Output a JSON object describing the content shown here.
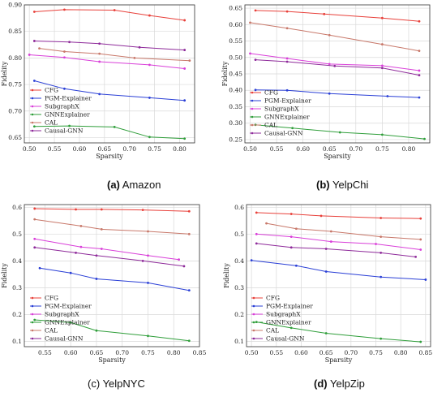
{
  "colors": {
    "CFG": "#e8403a",
    "PGM-Explainer": "#2a3fd6",
    "SubgraphX": "#d93fd9",
    "GNNExplainer": "#2f9e3a",
    "CAL": "#c8786a",
    "Causal-GNN": "#8e2a9a"
  },
  "captions": [
    {
      "letter": "(a)",
      "name": "Amazon"
    },
    {
      "letter": "(b)",
      "name": "YelpChi"
    },
    {
      "letter": "(c)",
      "name": "YelpNYC"
    },
    {
      "letter": "(d)",
      "name": "YelpZip"
    }
  ],
  "chart_data": [
    {
      "type": "line",
      "xlabel": "Sparsity",
      "ylabel": "Fidelity",
      "xlim": [
        0.49,
        0.83
      ],
      "ylim": [
        0.64,
        0.9
      ],
      "xticks": [
        0.5,
        0.55,
        0.6,
        0.65,
        0.7,
        0.75,
        0.8
      ],
      "yticks": [
        0.65,
        0.7,
        0.75,
        0.8,
        0.85,
        0.9
      ],
      "xtick_labels": [
        "0.50",
        "0.55",
        "0.60",
        "0.65",
        "0.70",
        "0.75",
        "0.80"
      ],
      "ytick_labels": [
        "0.65",
        "0.70",
        "0.75",
        "0.80",
        "0.85",
        "0.90"
      ],
      "grid": true,
      "legend": "lower-left",
      "series": [
        {
          "name": "CFG",
          "x": [
            0.51,
            0.57,
            0.67,
            0.74,
            0.81
          ],
          "y": [
            0.887,
            0.891,
            0.89,
            0.88,
            0.871
          ]
        },
        {
          "name": "PGM-Explainer",
          "x": [
            0.51,
            0.57,
            0.64,
            0.74,
            0.81
          ],
          "y": [
            0.757,
            0.742,
            0.732,
            0.725,
            0.72
          ]
        },
        {
          "name": "SubgraphX",
          "x": [
            0.5,
            0.57,
            0.64,
            0.74,
            0.81
          ],
          "y": [
            0.806,
            0.801,
            0.793,
            0.787,
            0.78
          ]
        },
        {
          "name": "GNNExplainer",
          "x": [
            0.51,
            0.58,
            0.67,
            0.74,
            0.81
          ],
          "y": [
            0.671,
            0.672,
            0.67,
            0.651,
            0.648
          ]
        },
        {
          "name": "CAL",
          "x": [
            0.52,
            0.57,
            0.64,
            0.71,
            0.82
          ],
          "y": [
            0.818,
            0.812,
            0.808,
            0.8,
            0.795
          ]
        },
        {
          "name": "Causal-GNN",
          "x": [
            0.51,
            0.58,
            0.64,
            0.72,
            0.81
          ],
          "y": [
            0.832,
            0.83,
            0.827,
            0.82,
            0.815
          ]
        }
      ]
    },
    {
      "type": "line",
      "xlabel": "Sparsity",
      "ylabel": "Fidelity",
      "xlim": [
        0.49,
        0.84
      ],
      "ylim": [
        0.24,
        0.66
      ],
      "xticks": [
        0.5,
        0.55,
        0.6,
        0.65,
        0.7,
        0.75,
        0.8
      ],
      "yticks": [
        0.25,
        0.3,
        0.35,
        0.4,
        0.45,
        0.5,
        0.55,
        0.6,
        0.65
      ],
      "xtick_labels": [
        "0.50",
        "0.55",
        "0.60",
        "0.65",
        "0.70",
        "0.75",
        "0.80"
      ],
      "ytick_labels": [
        "0.25",
        "0.30",
        "0.35",
        "0.40",
        "0.45",
        "0.50",
        "0.55",
        "0.60",
        "0.65"
      ],
      "grid": true,
      "legend": "lower-left",
      "series": [
        {
          "name": "CFG",
          "x": [
            0.51,
            0.57,
            0.64,
            0.75,
            0.82
          ],
          "y": [
            0.643,
            0.64,
            0.632,
            0.62,
            0.61
          ]
        },
        {
          "name": "PGM-Explainer",
          "x": [
            0.51,
            0.57,
            0.65,
            0.76,
            0.82
          ],
          "y": [
            0.401,
            0.4,
            0.39,
            0.382,
            0.378
          ]
        },
        {
          "name": "SubgraphX",
          "x": [
            0.5,
            0.57,
            0.65,
            0.75,
            0.82
          ],
          "y": [
            0.512,
            0.497,
            0.48,
            0.475,
            0.46
          ]
        },
        {
          "name": "GNNExplainer",
          "x": [
            0.51,
            0.58,
            0.67,
            0.75,
            0.83
          ],
          "y": [
            0.295,
            0.285,
            0.272,
            0.265,
            0.252
          ]
        },
        {
          "name": "CAL",
          "x": [
            0.5,
            0.57,
            0.65,
            0.75,
            0.82
          ],
          "y": [
            0.606,
            0.589,
            0.568,
            0.54,
            0.52
          ]
        },
        {
          "name": "Causal-GNN",
          "x": [
            0.51,
            0.57,
            0.66,
            0.75,
            0.82
          ],
          "y": [
            0.493,
            0.487,
            0.474,
            0.468,
            0.446
          ]
        }
      ]
    },
    {
      "type": "line",
      "xlabel": "Sparsity",
      "ylabel": "Fidelity",
      "xlim": [
        0.51,
        0.85
      ],
      "ylim": [
        0.08,
        0.61
      ],
      "xticks": [
        0.55,
        0.6,
        0.65,
        0.7,
        0.75,
        0.8,
        0.85
      ],
      "yticks": [
        0.1,
        0.2,
        0.3,
        0.4,
        0.5,
        0.6
      ],
      "xtick_labels": [
        "0.55",
        "0.60",
        "0.65",
        "0.70",
        "0.75",
        "0.80",
        "0.85"
      ],
      "ytick_labels": [
        "0.1",
        "0.2",
        "0.3",
        "0.4",
        "0.5",
        "0.6"
      ],
      "grid": true,
      "legend": "lower-left",
      "series": [
        {
          "name": "CFG",
          "x": [
            0.53,
            0.61,
            0.66,
            0.74,
            0.83
          ],
          "y": [
            0.595,
            0.592,
            0.592,
            0.59,
            0.585
          ]
        },
        {
          "name": "PGM-Explainer",
          "x": [
            0.54,
            0.6,
            0.65,
            0.75,
            0.83
          ],
          "y": [
            0.373,
            0.355,
            0.333,
            0.318,
            0.29
          ]
        },
        {
          "name": "SubgraphX",
          "x": [
            0.53,
            0.62,
            0.66,
            0.75,
            0.81
          ],
          "y": [
            0.482,
            0.452,
            0.445,
            0.42,
            0.405
          ]
        },
        {
          "name": "GNNExplainer",
          "x": [
            0.53,
            0.6,
            0.65,
            0.75,
            0.83
          ],
          "y": [
            0.18,
            0.17,
            0.14,
            0.12,
            0.102
          ]
        },
        {
          "name": "CAL",
          "x": [
            0.53,
            0.62,
            0.66,
            0.75,
            0.83
          ],
          "y": [
            0.555,
            0.53,
            0.518,
            0.51,
            0.5
          ]
        },
        {
          "name": "Causal-GNN",
          "x": [
            0.53,
            0.61,
            0.65,
            0.74,
            0.82
          ],
          "y": [
            0.45,
            0.43,
            0.42,
            0.4,
            0.38
          ]
        }
      ]
    },
    {
      "type": "line",
      "xlabel": "Sparsity",
      "ylabel": "Fidelity",
      "xlim": [
        0.49,
        0.86
      ],
      "ylim": [
        0.08,
        0.61
      ],
      "xticks": [
        0.5,
        0.55,
        0.6,
        0.65,
        0.7,
        0.75,
        0.8,
        0.85
      ],
      "yticks": [
        0.1,
        0.2,
        0.3,
        0.4,
        0.5,
        0.6
      ],
      "xtick_labels": [
        "0.50",
        "0.55",
        "0.60",
        "0.65",
        "0.70",
        "0.75",
        "0.80",
        "0.85"
      ],
      "ytick_labels": [
        "0.1",
        "0.2",
        "0.3",
        "0.4",
        "0.5",
        "0.6"
      ],
      "grid": true,
      "legend": "lower-left",
      "series": [
        {
          "name": "CFG",
          "x": [
            0.51,
            0.58,
            0.64,
            0.76,
            0.84
          ],
          "y": [
            0.58,
            0.575,
            0.568,
            0.56,
            0.558
          ]
        },
        {
          "name": "PGM-Explainer",
          "x": [
            0.5,
            0.59,
            0.65,
            0.76,
            0.85
          ],
          "y": [
            0.402,
            0.382,
            0.36,
            0.34,
            0.33
          ]
        },
        {
          "name": "SubgraphX",
          "x": [
            0.51,
            0.58,
            0.66,
            0.75,
            0.84
          ],
          "y": [
            0.5,
            0.49,
            0.472,
            0.463,
            0.442
          ]
        },
        {
          "name": "GNNExplainer",
          "x": [
            0.51,
            0.58,
            0.65,
            0.76,
            0.84
          ],
          "y": [
            0.172,
            0.15,
            0.13,
            0.11,
            0.098
          ]
        },
        {
          "name": "CAL",
          "x": [
            0.53,
            0.59,
            0.66,
            0.76,
            0.84
          ],
          "y": [
            0.54,
            0.52,
            0.51,
            0.49,
            0.48
          ]
        },
        {
          "name": "Causal-GNN",
          "x": [
            0.51,
            0.58,
            0.65,
            0.76,
            0.83
          ],
          "y": [
            0.465,
            0.45,
            0.445,
            0.43,
            0.415
          ]
        }
      ]
    }
  ]
}
